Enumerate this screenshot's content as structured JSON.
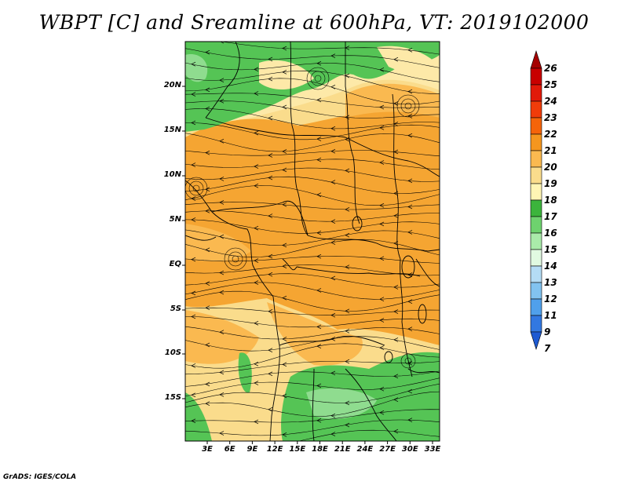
{
  "title": "WBPT [C] and Sreamline at 600hPa, VT: 2019102000",
  "credit": "GrADS: IGES/COLA",
  "map": {
    "lat_labels": [
      "20N",
      "15N",
      "10N",
      "5N",
      "EQ",
      "5S",
      "10S",
      "15S"
    ],
    "lon_labels": [
      "3E",
      "6E",
      "9E",
      "12E",
      "15E",
      "18E",
      "21E",
      "24E",
      "27E",
      "30E",
      "33E"
    ]
  },
  "colorbar": {
    "labels": [
      "26",
      "25",
      "24",
      "23",
      "22",
      "21",
      "20",
      "19",
      "18",
      "17",
      "16",
      "15",
      "14",
      "13",
      "12",
      "11",
      "9",
      "7"
    ],
    "colors": [
      "#a50000",
      "#c80000",
      "#e11a0a",
      "#f03c0a",
      "#f5640a",
      "#f5961e",
      "#fab950",
      "#fadc8c",
      "#fff5b4",
      "#3cb43c",
      "#6ed26e",
      "#aaebaa",
      "#e1fae1",
      "#b4dcf5",
      "#82c3f0",
      "#50a0eb",
      "#3278e1",
      "#1e5ad2"
    ]
  }
}
